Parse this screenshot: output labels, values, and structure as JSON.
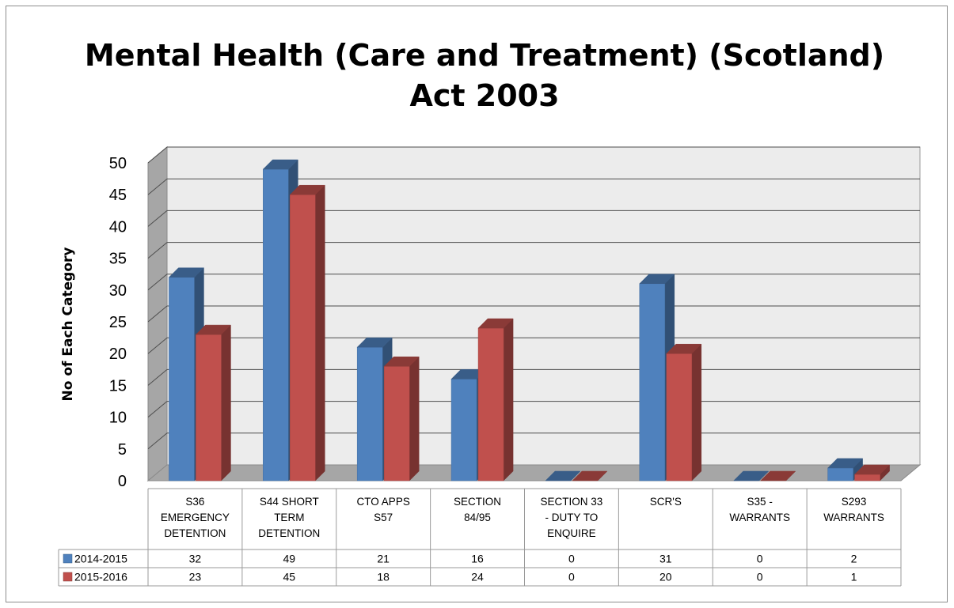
{
  "chart_data": {
    "type": "bar",
    "title_lines": [
      "Mental Health (Care and Treatment) (Scotland)",
      "Act 2003"
    ],
    "ylabel": "No of Each Category",
    "xlabel": "",
    "ylim": [
      0,
      50
    ],
    "yticks": [
      0,
      5,
      10,
      15,
      20,
      25,
      30,
      35,
      40,
      45,
      50
    ],
    "grid": true,
    "legend_placement": "data-table-left",
    "categories": [
      [
        "S36",
        "EMERGENCY",
        "DETENTION"
      ],
      [
        "S44 SHORT",
        "TERM",
        "DETENTION"
      ],
      [
        "CTO APPS",
        "S57"
      ],
      [
        "SECTION",
        "84/95"
      ],
      [
        "SECTION 33",
        "- DUTY TO",
        "ENQUIRE"
      ],
      [
        "SCR'S"
      ],
      [
        "S35 -",
        "WARRANTS"
      ],
      [
        "S293",
        "WARRANTS"
      ]
    ],
    "series": [
      {
        "name": "2014-2015",
        "color": "#4f81bd",
        "values": [
          32,
          49,
          21,
          16,
          0,
          31,
          0,
          2
        ]
      },
      {
        "name": "2015-2016",
        "color": "#c0504d",
        "values": [
          23,
          45,
          18,
          24,
          0,
          20,
          0,
          1
        ]
      }
    ]
  }
}
